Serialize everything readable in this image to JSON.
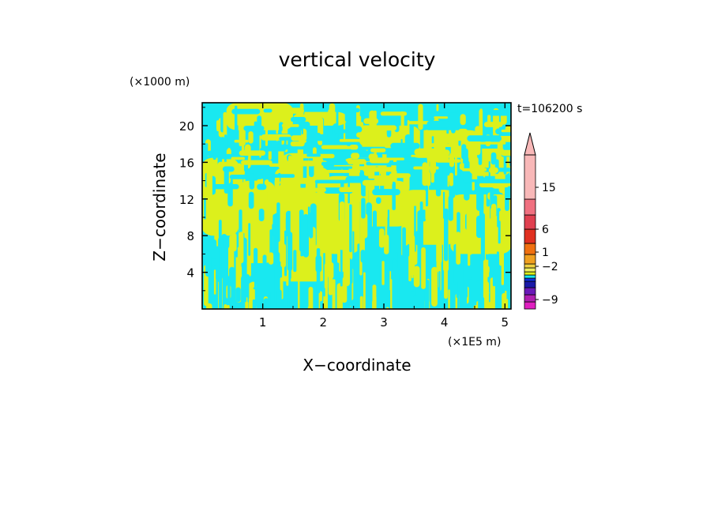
{
  "chart_data": {
    "type": "heatmap",
    "title": "vertical velocity",
    "xlabel": "X−coordinate",
    "ylabel": "Z−coordinate",
    "x_unit": "(×1E5 m)",
    "y_unit": "(×1000 m)",
    "time_label": "t=106200 s",
    "xlim": [
      0,
      5.1
    ],
    "ylim": [
      0,
      22.5
    ],
    "x_ticks": [
      1,
      2,
      3,
      4,
      5
    ],
    "x_tick_labels": [
      "1",
      "2",
      "3",
      "4",
      "5"
    ],
    "y_ticks": [
      4,
      8,
      12,
      16,
      20
    ],
    "y_tick_labels": [
      "4",
      "8",
      "12",
      "16",
      "20"
    ],
    "grid": false,
    "field_colors": {
      "negative": "#19e8f0",
      "positive": "#dcf01c"
    },
    "field_description": "Two-level contour fill: cyan for weak downdraft (about -1 to 0), yellow-green for weak updraft (0 to 1). Cyan dominates above about 16 km and in a broad band around 17-20 km on the left; yellow-green dominates 8-16 km in the center.",
    "colorbar": {
      "levels": [
        -9,
        -2,
        1,
        6,
        15
      ],
      "labels": [
        "−9",
        "−2",
        "1",
        "6",
        "15"
      ],
      "colors": [
        "#e020c0",
        "#b020b0",
        "#6a1ab8",
        "#1a1aa8",
        "#1030e0",
        "#19e8f0",
        "#dcf01c",
        "#f0f060",
        "#f0d040",
        "#f0a020",
        "#f07010",
        "#e03020",
        "#e04050",
        "#f07080",
        "#f8b8b8"
      ],
      "extend": "max"
    }
  }
}
